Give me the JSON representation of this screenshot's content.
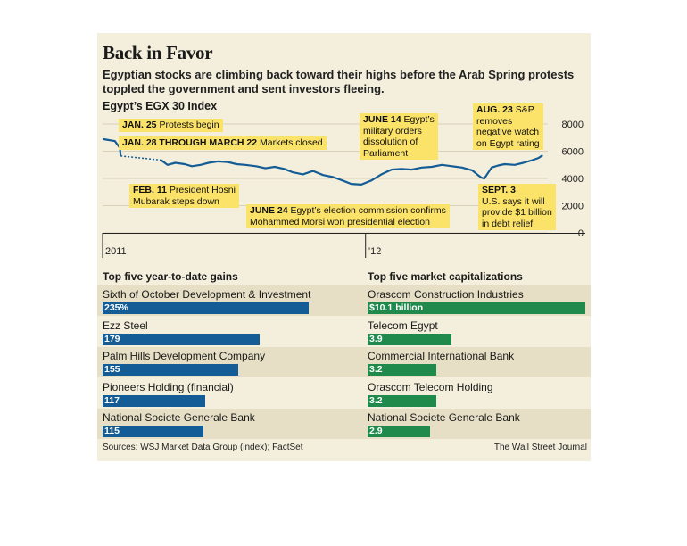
{
  "header": {
    "title": "Back in Favor",
    "dek": "Egyptian stocks are climbing back toward their highs before the Arab Spring protests toppled the government and sent investors fleeing."
  },
  "chart_data": [
    {
      "type": "line",
      "title": "Egypt’s EGX 30 Index",
      "y_ticks": [
        "8000",
        "6000",
        "4000",
        "2000",
        "0"
      ],
      "ylim": [
        0,
        8000
      ],
      "x_ticks": [
        "2011",
        "’12"
      ],
      "x_domain": [
        "2011-01-01",
        "2012-09-10"
      ],
      "gap": {
        "from": "2011-01-27",
        "to": "2011-03-22",
        "note": "Markets closed"
      },
      "series": [
        {
          "x": [
            "2011-01-01",
            "2011-01-06",
            "2011-01-12",
            "2011-01-18",
            "2011-01-25",
            "2011-01-26",
            "2011-03-23",
            "2011-04-01",
            "2011-04-12",
            "2011-04-25",
            "2011-05-05",
            "2011-05-17",
            "2011-05-28",
            "2011-06-10",
            "2011-06-24",
            "2011-07-06",
            "2011-07-18",
            "2011-08-02",
            "2011-08-15",
            "2011-08-28",
            "2011-09-10",
            "2011-09-22",
            "2011-10-06",
            "2011-10-20",
            "2011-11-03",
            "2011-11-17",
            "2011-11-30",
            "2011-12-12",
            "2011-12-26",
            "2012-01-09",
            "2012-01-23",
            "2012-02-06",
            "2012-02-20",
            "2012-03-05",
            "2012-03-19",
            "2012-04-02",
            "2012-04-16",
            "2012-04-30",
            "2012-05-14",
            "2012-05-28",
            "2012-06-05",
            "2012-06-10",
            "2012-06-14",
            "2012-06-17",
            "2012-06-24",
            "2012-07-03",
            "2012-07-12",
            "2012-07-26",
            "2012-08-07",
            "2012-08-20",
            "2012-08-28",
            "2012-09-03"
          ],
          "values": [
            6900,
            6850,
            6800,
            6750,
            6250,
            5650,
            5350,
            5000,
            5150,
            5050,
            4900,
            5000,
            5150,
            5250,
            5200,
            5050,
            5000,
            4900,
            4750,
            4850,
            4700,
            4450,
            4300,
            4550,
            4250,
            4100,
            3850,
            3600,
            3550,
            3850,
            4300,
            4650,
            4700,
            4650,
            4800,
            4850,
            5000,
            4900,
            4800,
            4600,
            4250,
            4050,
            4000,
            4250,
            4800,
            4950,
            5050,
            5000,
            5150,
            5350,
            5500,
            5700
          ]
        }
      ],
      "annotations": [
        {
          "date_label": "JAN. 25",
          "text": "Protests begin"
        },
        {
          "date_label": "JAN. 28 THROUGH MARCH 22",
          "text": "Markets closed"
        },
        {
          "date_label": "FEB. 11",
          "text": "President Hosni",
          "text2": "Mubarak steps down"
        },
        {
          "date_label": "JUNE 14",
          "text": "Egypt’s",
          "text2": "military orders",
          "text3": "dissolution of",
          "text4": "Parliament"
        },
        {
          "date_label": "JUNE 24",
          "text": "Egypt’s election commission confirms",
          "text2": "Mohammed Morsi won presidential election"
        },
        {
          "date_label": "AUG. 23",
          "text": "S&P",
          "text2": "removes",
          "text3": "negative watch",
          "text4": "on Egypt rating"
        },
        {
          "date_label": "SEPT. 3",
          "text": "",
          "text2": "U.S. says it will",
          "text3": "provide $1 billion",
          "text4": "in debt relief"
        }
      ]
    },
    {
      "type": "bar",
      "title": "Top five year-to-date gains",
      "categories": [
        "Sixth of October Development & Investment",
        "Ezz Steel",
        "Palm Hills Development Company",
        "Pioneers Holding (financial)",
        "National Societe Generale Bank"
      ],
      "values": [
        235,
        179,
        155,
        117,
        115
      ],
      "value_labels": [
        "235%",
        "179",
        "155",
        "117",
        "115"
      ],
      "color": "#135c96"
    },
    {
      "type": "bar",
      "title": "Top five market capitalizations",
      "categories": [
        "Orascom Construction Industries",
        "Telecom Egypt",
        "Commercial International Bank",
        "Orascom Telecom Holding",
        "National Societe Generale Bank"
      ],
      "values": [
        10.1,
        3.9,
        3.2,
        3.2,
        2.9
      ],
      "value_labels": [
        "$10.1 billion",
        "3.9",
        "3.2",
        "3.2",
        "2.9"
      ],
      "color": "#1f8a4c"
    }
  ],
  "footer": {
    "source": "Sources: WSJ Market Data Group (index); FactSet",
    "credit": "The Wall Street Journal"
  }
}
